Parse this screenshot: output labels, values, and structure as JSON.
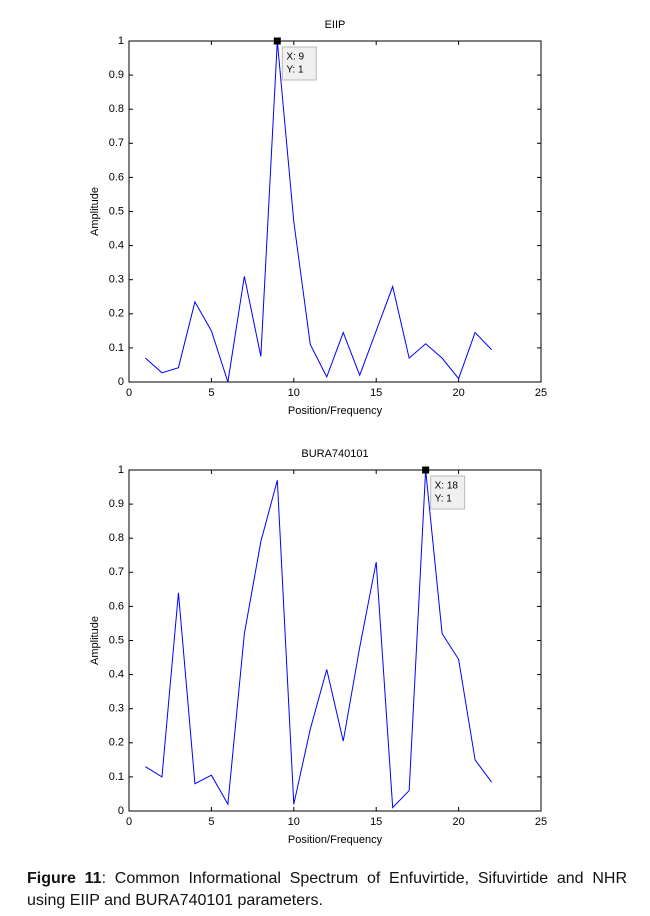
{
  "chart_data": [
    {
      "type": "line",
      "title": "EIIP",
      "xlabel": "Position/Frequency",
      "ylabel": "Amplitude",
      "x": [
        1,
        2,
        3,
        4,
        5,
        6,
        7,
        8,
        9,
        10,
        11,
        12,
        13,
        14,
        15,
        16,
        17,
        18,
        19,
        20,
        21,
        22
      ],
      "values": [
        0.07,
        0.027,
        0.042,
        0.235,
        0.15,
        0.0,
        0.31,
        0.075,
        1.0,
        0.47,
        0.11,
        0.015,
        0.145,
        0.02,
        0.15,
        0.28,
        0.07,
        0.112,
        0.07,
        0.01,
        0.145,
        0.095
      ],
      "color": "#0000ff",
      "xlim": [
        0,
        25
      ],
      "xticks": [
        0,
        5,
        10,
        15,
        20,
        25
      ],
      "ylim": [
        0,
        1
      ],
      "yticks": [
        0,
        0.1,
        0.2,
        0.3,
        0.4,
        0.5,
        0.6,
        0.7,
        0.8,
        0.9,
        1
      ],
      "annotations": [
        {
          "x": 9,
          "y": 1,
          "label_x": "X: 9",
          "label_y": "Y: 1"
        }
      ]
    },
    {
      "type": "line",
      "title": "BURA740101",
      "xlabel": "Position/Frequency",
      "ylabel": "Amplitude",
      "x": [
        1,
        2,
        3,
        4,
        5,
        6,
        7,
        8,
        9,
        10,
        11,
        12,
        13,
        14,
        15,
        16,
        17,
        18,
        19,
        20,
        21,
        22
      ],
      "values": [
        0.13,
        0.1,
        0.64,
        0.08,
        0.105,
        0.02,
        0.52,
        0.79,
        0.97,
        0.02,
        0.24,
        0.415,
        0.205,
        0.48,
        0.73,
        0.01,
        0.06,
        1.0,
        0.52,
        0.445,
        0.15,
        0.085
      ],
      "color": "#0000ff",
      "xlim": [
        0,
        25
      ],
      "xticks": [
        0,
        5,
        10,
        15,
        20,
        25
      ],
      "ylim": [
        0,
        1
      ],
      "yticks": [
        0,
        0.1,
        0.2,
        0.3,
        0.4,
        0.5,
        0.6,
        0.7,
        0.8,
        0.9,
        1
      ],
      "annotations": [
        {
          "x": 18,
          "y": 1,
          "label_x": "X: 18",
          "label_y": "Y: 1"
        }
      ]
    }
  ],
  "caption": {
    "label": "Figure 11",
    "text": ": Common Informational Spectrum of Enfuvirtide, Sifuvirtide and NHR using EIIP and BURA740101 parameters."
  }
}
